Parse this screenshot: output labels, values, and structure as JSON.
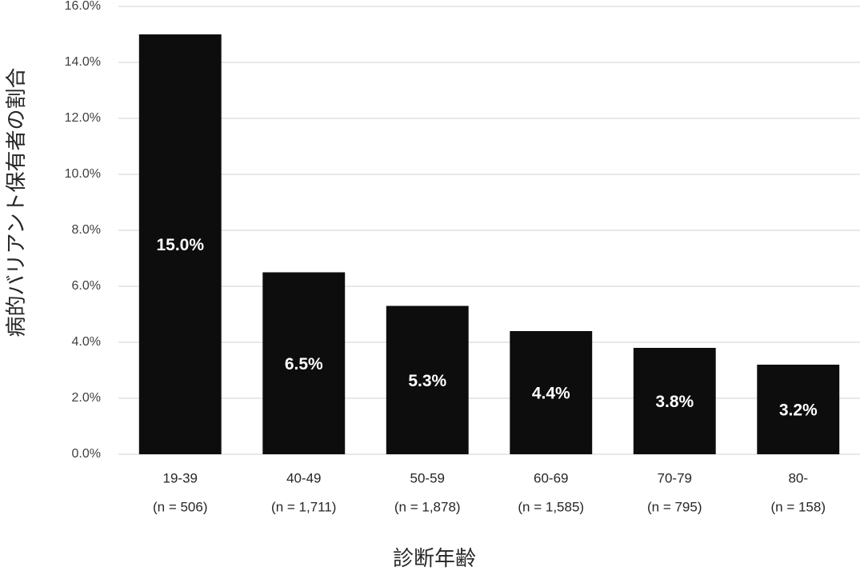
{
  "chart_data": {
    "type": "bar",
    "x_label": "診断年齢",
    "y_label": "病的バリアント保有者の割合",
    "categories": [
      "19-39",
      "40-49",
      "50-59",
      "60-69",
      "70-79",
      "80-"
    ],
    "category_notes": [
      "(n = 506)",
      "(n = 1,711)",
      "(n = 1,878)",
      "(n = 1,585)",
      "(n = 795)",
      "(n = 158)"
    ],
    "values": [
      15.0,
      6.5,
      5.3,
      4.4,
      3.8,
      3.2
    ],
    "value_labels": [
      "15.0%",
      "6.5%",
      "5.3%",
      "4.4%",
      "3.8%",
      "3.2%"
    ],
    "color": "#0d0d0d",
    "ylim": [
      0,
      16
    ],
    "yticks": [
      {
        "value": 0,
        "label": "0.0%"
      },
      {
        "value": 2,
        "label": "2.0%"
      },
      {
        "value": 4,
        "label": "4.0%"
      },
      {
        "value": 6,
        "label": "6.0%"
      },
      {
        "value": 8,
        "label": "8.0%"
      },
      {
        "value": 10,
        "label": "10.0%"
      },
      {
        "value": 12,
        "label": "12.0%"
      },
      {
        "value": 14,
        "label": "14.0%"
      },
      {
        "value": 16,
        "label": "16.0%"
      }
    ],
    "grid": true
  }
}
